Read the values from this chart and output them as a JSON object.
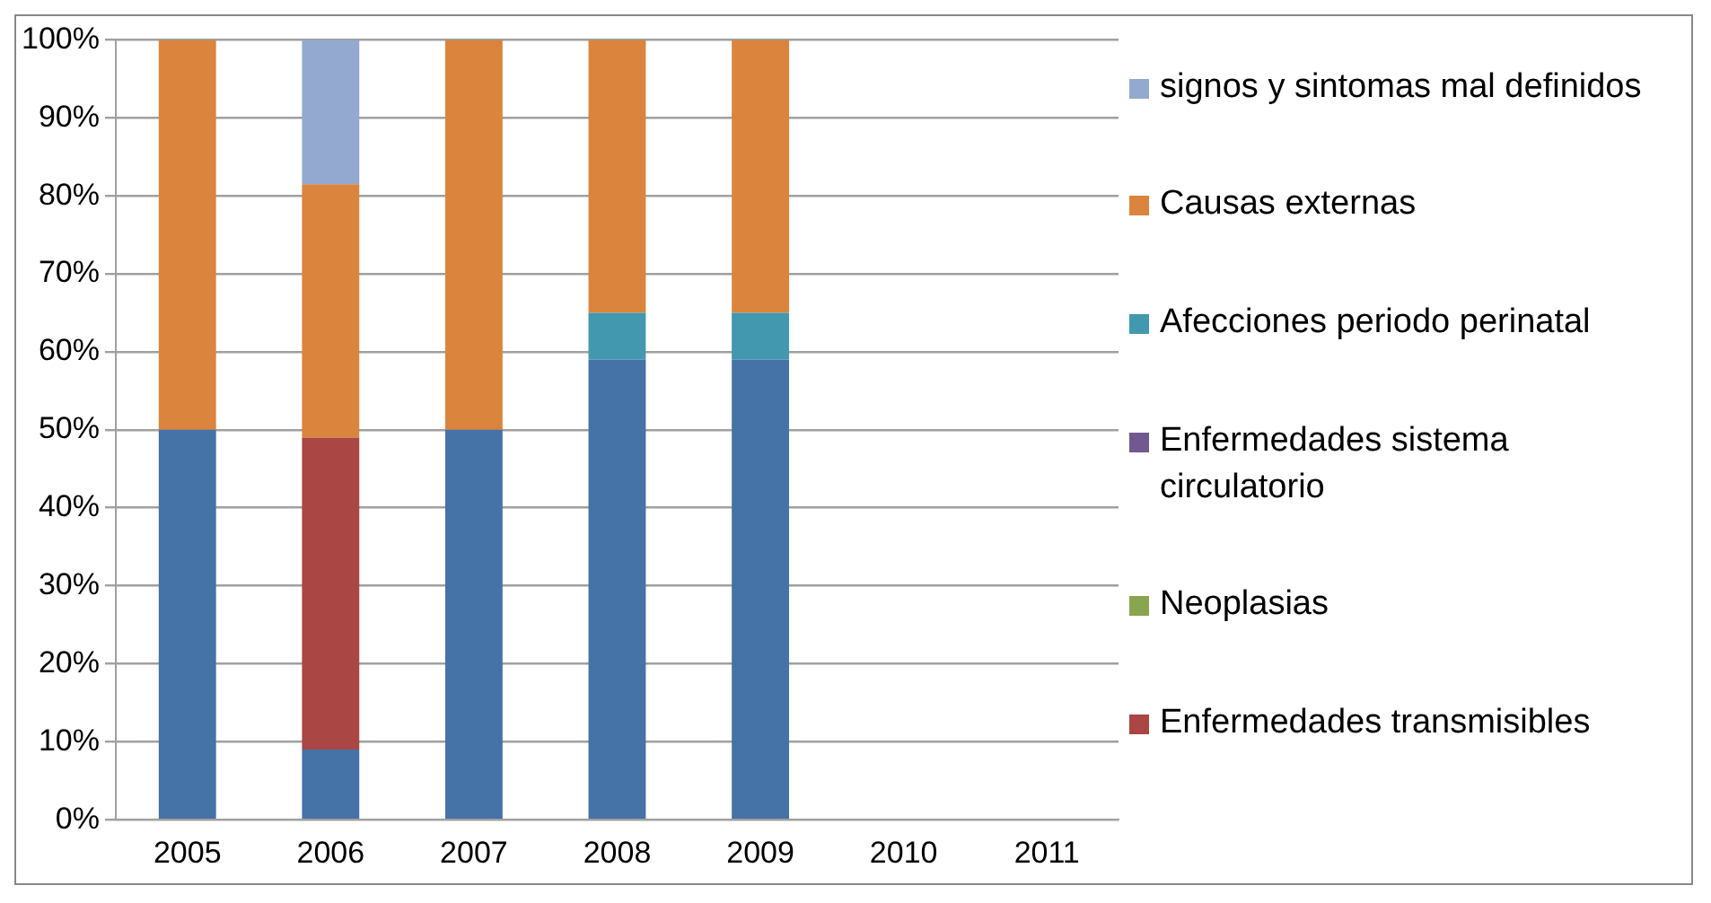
{
  "chart_data": {
    "type": "bar",
    "stacked": true,
    "categories": [
      "2005",
      "2006",
      "2007",
      "2008",
      "2009",
      "2010",
      "2011"
    ],
    "ylim": [
      0,
      100
    ],
    "yticks": [
      {
        "value": 0,
        "label": "0%"
      },
      {
        "value": 10,
        "label": "10%"
      },
      {
        "value": 20,
        "label": "20%"
      },
      {
        "value": 30,
        "label": "30%"
      },
      {
        "value": 40,
        "label": "40%"
      },
      {
        "value": 50,
        "label": "50%"
      },
      {
        "value": 60,
        "label": "60%"
      },
      {
        "value": 70,
        "label": "70%"
      },
      {
        "value": 80,
        "label": "80%"
      },
      {
        "value": 90,
        "label": "90%"
      },
      {
        "value": 100,
        "label": "100%"
      }
    ],
    "grid": "y",
    "legend": "right",
    "series": [
      {
        "color": "#4572a7",
        "values": [
          50,
          9,
          50,
          59,
          59,
          null,
          null
        ]
      },
      {
        "name": "Enfermedades transmisibles",
        "color": "#aa4643",
        "values": [
          0,
          40,
          0,
          0,
          0,
          null,
          null
        ]
      },
      {
        "name": "Neoplasias",
        "color": "#89a54e",
        "values": [
          0,
          0,
          0,
          0,
          0,
          null,
          null
        ]
      },
      {
        "name": "Enfermedades sistema circulatorio",
        "color": "#71588f",
        "values": [
          0,
          0,
          0,
          0,
          0,
          null,
          null
        ]
      },
      {
        "name": "Afecciones periodo perinatal",
        "color": "#4198af",
        "values": [
          0,
          0,
          0,
          6,
          6,
          null,
          null
        ]
      },
      {
        "name": "Causas externas",
        "color": "#db843d",
        "values": [
          50,
          32.5,
          50,
          35,
          35,
          null,
          null
        ]
      },
      {
        "name": "signos y sintomas mal definidos",
        "color": "#93a9cf",
        "values": [
          0,
          18.5,
          0,
          0,
          0,
          null,
          null
        ]
      }
    ]
  }
}
